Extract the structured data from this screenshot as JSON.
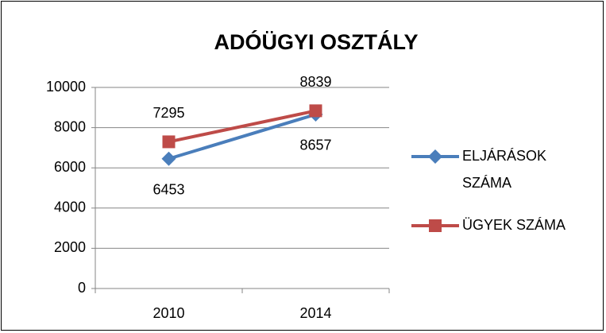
{
  "chart_data": {
    "type": "line",
    "title": "ADÓÜGYI OSZTÁLY",
    "categories": [
      "2010",
      "2014"
    ],
    "series": [
      {
        "name": "ELJÁRÁSOK SZÁMA",
        "color": "#4a7ebb",
        "marker": "diamond",
        "values": [
          6453,
          8657
        ]
      },
      {
        "name": "ÜGYEK SZÁMA",
        "color": "#be4b48",
        "marker": "square",
        "values": [
          7295,
          8839
        ]
      }
    ],
    "ylim": [
      0,
      10000
    ],
    "yticks": [
      0,
      2000,
      4000,
      6000,
      8000,
      10000
    ],
    "grid": true,
    "legend": "right"
  }
}
